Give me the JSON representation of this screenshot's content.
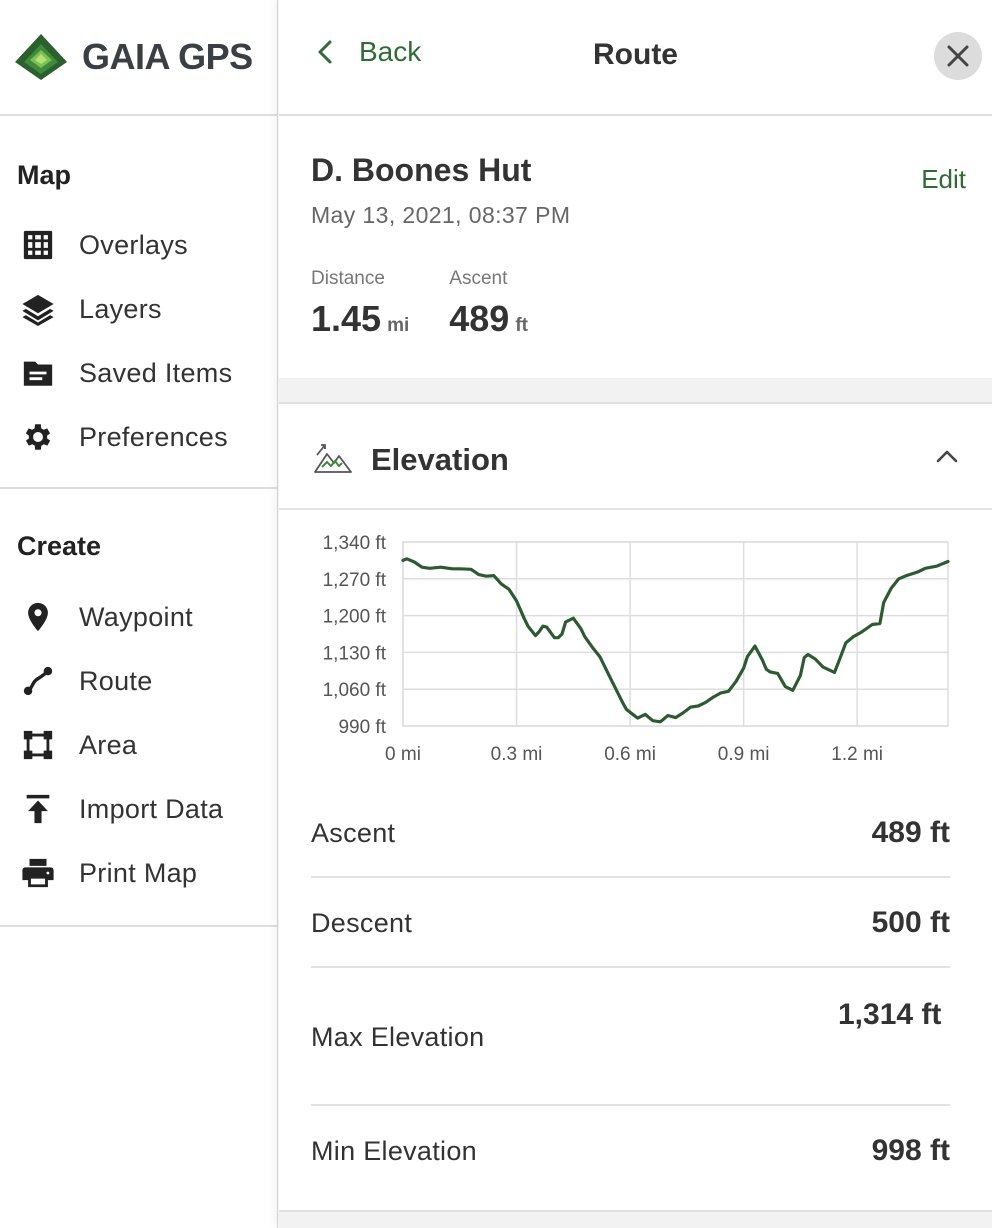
{
  "sidebar": {
    "logo_text": "GAIA GPS",
    "sections": [
      {
        "title": "Map",
        "items": [
          {
            "label": "Overlays",
            "icon": "grid-icon"
          },
          {
            "label": "Layers",
            "icon": "layers-icon"
          },
          {
            "label": "Saved Items",
            "icon": "folder-icon"
          },
          {
            "label": "Preferences",
            "icon": "gear-icon"
          }
        ]
      },
      {
        "title": "Create",
        "items": [
          {
            "label": "Waypoint",
            "icon": "map-pin-icon"
          },
          {
            "label": "Route",
            "icon": "route-icon"
          },
          {
            "label": "Area",
            "icon": "area-icon"
          },
          {
            "label": "Import Data",
            "icon": "upload-icon"
          },
          {
            "label": "Print Map",
            "icon": "printer-icon"
          }
        ]
      }
    ]
  },
  "topbar": {
    "back_label": "Back",
    "title": "Route"
  },
  "route": {
    "name": "D. Boones Hut",
    "date": "May 13, 2021, 08:37 PM",
    "edit_label": "Edit",
    "stats": [
      {
        "label": "Distance",
        "value": "1.45",
        "unit": "mi"
      },
      {
        "label": "Ascent",
        "value": "489",
        "unit": "ft"
      }
    ]
  },
  "elevation": {
    "title": "Elevation",
    "metrics": [
      {
        "label": "Ascent",
        "value": "489 ft"
      },
      {
        "label": "Descent",
        "value": "500 ft"
      },
      {
        "label": "Max Elevation",
        "value": "1,314 ft"
      },
      {
        "label": "Min Elevation",
        "value": "998 ft"
      }
    ]
  },
  "colors": {
    "accent": "#2f6b35",
    "line": "#2e5a32",
    "grid": "#dddddd"
  },
  "chart_data": {
    "type": "line",
    "title": "",
    "xlabel": "",
    "ylabel": "",
    "xlim": [
      0,
      1.44
    ],
    "ylim": [
      990,
      1340
    ],
    "x_ticks": [
      0,
      0.3,
      0.6,
      0.9,
      1.2
    ],
    "x_tick_labels": [
      "0 mi",
      "0.3 mi",
      "0.6 mi",
      "0.9 mi",
      "1.2 mi"
    ],
    "y_ticks": [
      990,
      1060,
      1130,
      1200,
      1270,
      1340
    ],
    "y_tick_labels": [
      "990 ft",
      "1,060 ft",
      "1,130 ft",
      "1,200 ft",
      "1,270 ft",
      "1,340 ft"
    ],
    "grid": true,
    "series": [
      {
        "x": [
          0,
          0.01,
          0.03,
          0.05,
          0.07,
          0.1,
          0.13,
          0.15,
          0.18,
          0.2,
          0.22,
          0.24,
          0.26,
          0.28,
          0.3,
          0.32,
          0.33,
          0.35,
          0.36,
          0.37,
          0.38,
          0.4,
          0.41,
          0.42,
          0.43,
          0.45,
          0.47,
          0.48,
          0.5,
          0.52,
          0.55,
          0.58,
          0.59,
          0.6,
          0.62,
          0.64,
          0.66,
          0.68,
          0.7,
          0.72,
          0.74,
          0.76,
          0.78,
          0.8,
          0.82,
          0.84,
          0.86,
          0.88,
          0.9,
          0.91,
          0.93,
          0.95,
          0.96,
          0.97,
          0.99,
          1.01,
          1.03,
          1.05,
          1.06,
          1.07,
          1.09,
          1.11,
          1.14,
          1.15,
          1.17,
          1.19,
          1.21,
          1.24,
          1.26,
          1.27,
          1.29,
          1.31,
          1.33,
          1.36,
          1.38,
          1.41,
          1.44
        ],
        "values": [
          1305,
          1308,
          1302,
          1292,
          1290,
          1292,
          1289,
          1289,
          1288,
          1278,
          1275,
          1276,
          1260,
          1250,
          1228,
          1195,
          1180,
          1162,
          1170,
          1180,
          1178,
          1158,
          1158,
          1165,
          1188,
          1195,
          1175,
          1160,
          1140,
          1122,
          1078,
          1035,
          1022,
          1016,
          1005,
          1012,
          1000,
          998,
          1010,
          1006,
          1015,
          1026,
          1028,
          1035,
          1045,
          1053,
          1056,
          1075,
          1100,
          1122,
          1142,
          1115,
          1098,
          1093,
          1090,
          1065,
          1058,
          1086,
          1120,
          1126,
          1117,
          1102,
          1092,
          1110,
          1148,
          1160,
          1168,
          1183,
          1185,
          1225,
          1252,
          1270,
          1276,
          1283,
          1290,
          1294,
          1303
        ]
      }
    ]
  }
}
